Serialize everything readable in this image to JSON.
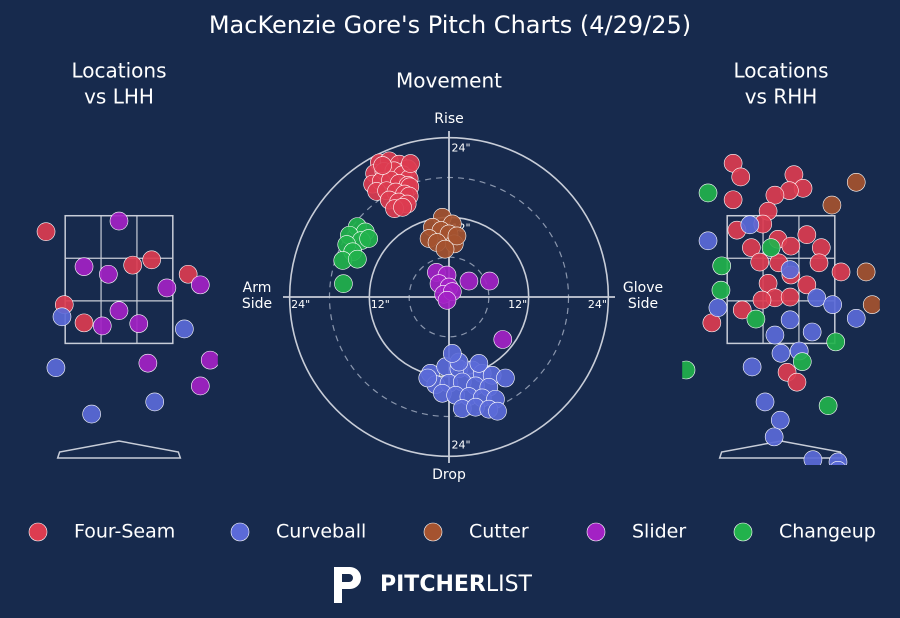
{
  "title": "MacKenzie Gore's Pitch Charts (4/29/25)",
  "pitch_types": [
    {
      "name": "Four-Seam",
      "color": "#dc3c50"
    },
    {
      "name": "Curveball",
      "color": "#5b6ad8"
    },
    {
      "name": "Cutter",
      "color": "#a5532f"
    },
    {
      "name": "Slider",
      "color": "#a322c4"
    },
    {
      "name": "Changeup",
      "color": "#22b24c"
    }
  ],
  "logo": [
    "PITCHER",
    "LIST"
  ],
  "chart_data": [
    {
      "type": "location",
      "title": [
        "Locations",
        "vs LHH"
      ],
      "xlim": [
        -1.3,
        1.3
      ],
      "ylim": [
        0,
        4.5
      ],
      "zone": {
        "x": [
          -0.708,
          0.708
        ],
        "z": [
          1.6,
          3.28
        ]
      },
      "series": [
        {
          "x": [
            -0.96,
            0.18,
            0.43,
            0.91,
            -0.72,
            -0.46
          ],
          "y": [
            3.07,
            2.63,
            2.7,
            2.51,
            2.11,
            1.87
          ]
        },
        {
          "x": [
            -0.75,
            0.86,
            -0.83,
            0.47,
            -0.36
          ],
          "y": [
            1.95,
            1.79,
            1.28,
            0.83,
            0.67
          ]
        },
        {
          "x": [],
          "y": []
        },
        {
          "x": [
            0,
            -0.46,
            -0.14,
            0.63,
            1.07,
            -0.22,
            0,
            0.26,
            0.38,
            1.2,
            1.07
          ],
          "y": [
            3.21,
            2.61,
            2.51,
            2.33,
            2.37,
            1.83,
            2.03,
            1.86,
            1.34,
            1.38,
            1.04
          ]
        },
        {
          "x": [],
          "y": []
        }
      ]
    },
    {
      "type": "movement",
      "title": "Movement",
      "rlim": [
        0,
        25
      ],
      "rings": [
        6,
        12,
        18,
        24
      ],
      "rticks": [
        {
          "value": 12,
          "label": "12\""
        },
        {
          "value": 24,
          "label": "24\""
        }
      ],
      "axis_labels": {
        "top": "Rise",
        "bottom": "Drop",
        "left": [
          "Arm",
          "Side"
        ],
        "right": [
          "Glove",
          "Side"
        ]
      },
      "series": [
        {
          "x": [
            -10.5,
            -9.0,
            -7.5,
            -6.2,
            -11.2,
            -9.8,
            -8.3,
            -7.0,
            -6.0,
            -11.5,
            -10.2,
            -8.8,
            -7.5,
            -6.2,
            -5.9,
            -10.9,
            -9.4,
            -8.0,
            -6.7,
            -6.0,
            -9.0,
            -7.6,
            -6.3,
            -8.2,
            -7.0,
            -10.0,
            -5.8
          ],
          "y": [
            20.2,
            20.5,
            20.0,
            19.3,
            18.6,
            18.9,
            19.0,
            18.4,
            17.8,
            17.0,
            17.4,
            17.6,
            17.1,
            16.8,
            16.6,
            15.9,
            16.0,
            15.8,
            15.5,
            15.2,
            14.6,
            14.3,
            14.0,
            13.3,
            13.5,
            19.8,
            20.1
          ]
        },
        {
          "x": [
            -2.8,
            -0.5,
            1.5,
            3.5,
            5.0,
            6.5,
            -2.0,
            0.0,
            2.0,
            4.0,
            6.0,
            8.5,
            -3.2,
            -1.0,
            1.0,
            3.0,
            5.0,
            7.0,
            2.0,
            4.0,
            6.0,
            7.3,
            1.5,
            0.5,
            4.5
          ],
          "y": [
            -11.5,
            -10.5,
            -10.8,
            -11.0,
            -11.5,
            -11.8,
            -13.2,
            -13.0,
            -12.8,
            -13.4,
            -13.6,
            -12.2,
            -12.2,
            -14.5,
            -14.8,
            -15.0,
            -15.2,
            -15.4,
            -16.8,
            -16.6,
            -16.9,
            -17.2,
            -9.8,
            -8.5,
            -10.0
          ]
        },
        {
          "x": [
            -1.0,
            0.5,
            -2.5,
            -1.2,
            0.0,
            -3.0,
            -1.8,
            0.8,
            1.2,
            -0.6
          ],
          "y": [
            12.0,
            11.0,
            10.5,
            10.0,
            9.5,
            8.8,
            8.2,
            8.0,
            9.2,
            7.2
          ]
        },
        {
          "x": [
            -1.9,
            -0.3,
            -1.5,
            0.0,
            -0.8,
            0.5,
            3.0,
            6.1,
            8.1,
            -0.3
          ],
          "y": [
            3.7,
            3.3,
            2.0,
            1.5,
            0.4,
            0.8,
            2.4,
            2.4,
            -6.4,
            -0.5
          ]
        },
        {
          "x": [
            -13.8,
            -12.6,
            -15.0,
            -13.2,
            -15.4,
            -12.1,
            -14.5,
            -16.0,
            -13.8,
            -15.9
          ],
          "y": [
            10.6,
            9.8,
            9.3,
            8.5,
            7.9,
            8.8,
            6.8,
            5.5,
            5.7,
            2.0
          ]
        }
      ]
    },
    {
      "type": "location",
      "title": [
        "Locations",
        "vs RHH"
      ],
      "xlim": [
        -1.3,
        1.3
      ],
      "ylim": [
        0,
        4.5
      ],
      "zone": {
        "x": [
          -0.708,
          0.708
        ],
        "z": [
          1.6,
          3.28
        ]
      },
      "series": [
        {
          "x": [
            -0.63,
            -0.53,
            0.17,
            0.29,
            0.11,
            -0.08,
            -0.17,
            -0.24,
            -0.58,
            -0.39,
            -0.04,
            0.13,
            0.34,
            0.53,
            -0.28,
            -0.03,
            0.5,
            0.79,
            -0.17,
            0.13,
            0.34,
            -0.08,
            0.12,
            -0.25,
            -0.51,
            -0.91,
            0.08,
            0.21,
            -0.63
          ],
          "y": [
            3.97,
            3.79,
            3.82,
            3.64,
            3.61,
            3.55,
            3.34,
            3.17,
            3.09,
            2.86,
            2.97,
            2.88,
            3.03,
            2.86,
            2.67,
            2.66,
            2.66,
            2.54,
            2.39,
            2.5,
            2.37,
            2.2,
            2.21,
            2.17,
            2.04,
            1.87,
            1.22,
            1.09,
            3.49
          ]
        },
        {
          "x": [
            -0.41,
            -0.96,
            0.12,
            -0.83,
            0.12,
            -0.08,
            0.47,
            0.68,
            0.99,
            0,
            0.24,
            0.41,
            -0.38,
            -0.21,
            -0.01,
            -0.09,
            0.42,
            0.75,
            0.75
          ],
          "y": [
            3.16,
            2.95,
            2.57,
            2.07,
            1.91,
            1.71,
            2.2,
            2.11,
            1.93,
            1.47,
            1.5,
            1.75,
            1.29,
            0.83,
            0.59,
            0.37,
            0.07,
            0.04,
            -0.07
          ]
        },
        {
          "x": [
            0.99,
            0.67,
            1.12,
            1.2
          ],
          "y": [
            3.72,
            3.42,
            2.54,
            2.11
          ]
        },
        {
          "x": [],
          "y": []
        },
        {
          "x": [
            -0.96,
            -0.13,
            -0.78,
            -0.79,
            -0.33,
            0.72,
            0.28,
            -1.25,
            0.62
          ],
          "y": [
            3.58,
            2.86,
            2.62,
            2.3,
            1.92,
            1.62,
            1.36,
            1.25,
            0.78
          ]
        }
      ]
    }
  ]
}
